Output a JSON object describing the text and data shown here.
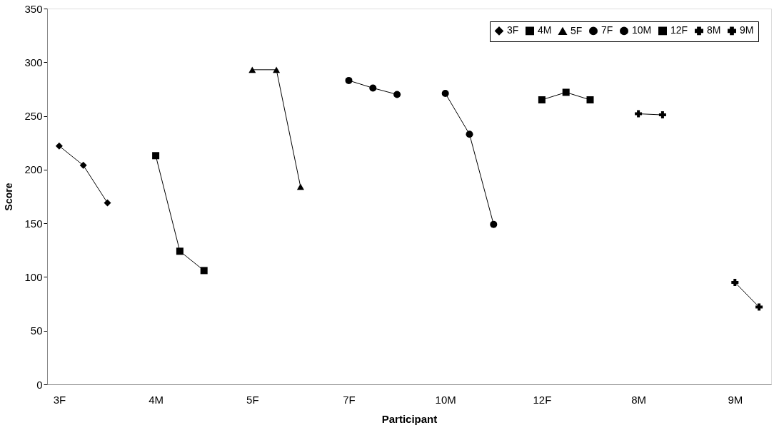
{
  "chart_data": {
    "type": "line",
    "xlabel": "Participant",
    "ylabel": "Score",
    "categories": [
      "3F",
      null,
      null,
      null,
      "4M",
      null,
      null,
      null,
      "5F",
      null,
      null,
      null,
      "7F",
      null,
      null,
      null,
      "10M",
      null,
      null,
      null,
      "12F",
      null,
      null,
      null,
      "8M",
      null,
      null,
      null,
      "9M",
      null
    ],
    "ylim": [
      0,
      350
    ],
    "yticks": [
      0,
      50,
      100,
      150,
      200,
      250,
      300,
      350
    ],
    "grid": false,
    "legend": "top right",
    "line_style": "solid",
    "series": [
      {
        "name": "3F",
        "color": "#000000",
        "marker": "diamond",
        "values": [
          222,
          204,
          169,
          null,
          null,
          null,
          null,
          null,
          null,
          null,
          null,
          null,
          null,
          null,
          null,
          null,
          null,
          null,
          null,
          null,
          null,
          null,
          null,
          null,
          null,
          null,
          null,
          null,
          null,
          null
        ]
      },
      {
        "name": "4M",
        "color": "#000000",
        "marker": "square",
        "values": [
          null,
          null,
          null,
          null,
          213,
          124,
          106,
          null,
          null,
          null,
          null,
          null,
          null,
          null,
          null,
          null,
          null,
          null,
          null,
          null,
          null,
          null,
          null,
          null,
          null,
          null,
          null,
          null,
          null,
          null
        ]
      },
      {
        "name": "5F",
        "color": "#000000",
        "marker": "triangle",
        "values": [
          null,
          null,
          null,
          null,
          null,
          null,
          null,
          null,
          293,
          293,
          184,
          null,
          null,
          null,
          null,
          null,
          null,
          null,
          null,
          null,
          null,
          null,
          null,
          null,
          null,
          null,
          null,
          null,
          null,
          null
        ]
      },
      {
        "name": "7F",
        "color": "#000000",
        "marker": "circle",
        "values": [
          null,
          null,
          null,
          null,
          null,
          null,
          null,
          null,
          null,
          null,
          null,
          null,
          283,
          276,
          270,
          null,
          null,
          null,
          null,
          null,
          null,
          null,
          null,
          null,
          null,
          null,
          null,
          null,
          null,
          null
        ]
      },
      {
        "name": "10M",
        "color": "#000000",
        "marker": "circle",
        "values": [
          null,
          null,
          null,
          null,
          null,
          null,
          null,
          null,
          null,
          null,
          null,
          null,
          null,
          null,
          null,
          null,
          271,
          233,
          149,
          null,
          null,
          null,
          null,
          null,
          null,
          null,
          null,
          null,
          null,
          null
        ]
      },
      {
        "name": "12F",
        "color": "#000000",
        "marker": "square",
        "values": [
          null,
          null,
          null,
          null,
          null,
          null,
          null,
          null,
          null,
          null,
          null,
          null,
          null,
          null,
          null,
          null,
          null,
          null,
          null,
          null,
          265,
          272,
          265,
          null,
          null,
          null,
          null,
          null,
          null,
          null
        ]
      },
      {
        "name": "8M",
        "color": "#000000",
        "marker": "cross",
        "values": [
          null,
          null,
          null,
          null,
          null,
          null,
          null,
          null,
          null,
          null,
          null,
          null,
          null,
          null,
          null,
          null,
          null,
          null,
          null,
          null,
          null,
          null,
          null,
          null,
          252,
          251,
          null,
          null,
          null,
          null
        ]
      },
      {
        "name": "9M",
        "color": "#000000",
        "marker": "cross",
        "values": [
          null,
          null,
          null,
          null,
          null,
          null,
          null,
          null,
          null,
          null,
          null,
          null,
          null,
          null,
          null,
          null,
          null,
          null,
          null,
          null,
          null,
          null,
          null,
          null,
          null,
          null,
          null,
          null,
          95,
          72
        ]
      }
    ]
  }
}
